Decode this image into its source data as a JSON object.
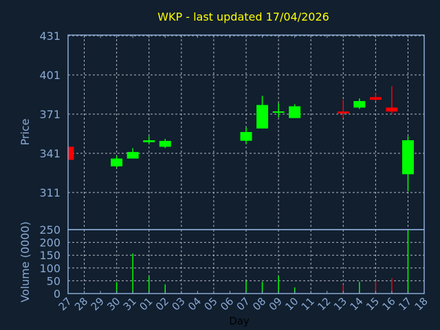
{
  "chart_data": [
    {
      "type": "candlestick",
      "title": "WKP - last updated 17/04/2026",
      "ylabel": "Price",
      "xlabel": "Day",
      "ylim": [
        282.6,
        431.5
      ],
      "yticks": [
        431,
        401,
        371,
        341,
        311
      ],
      "grid": true,
      "categories": [
        "27",
        "28",
        "29",
        "30",
        "31",
        "01",
        "02",
        "03",
        "04",
        "05",
        "06",
        "07",
        "08",
        "09",
        "10",
        "11",
        "12",
        "13",
        "14",
        "15",
        "16",
        "17",
        "18"
      ],
      "candles": [
        {
          "day": "27",
          "open": 346,
          "high": 346,
          "low": 336,
          "close": 336
        },
        {
          "day": "30",
          "open": 331,
          "high": 339,
          "low": 330,
          "close": 337
        },
        {
          "day": "31",
          "open": 337,
          "high": 345,
          "low": 337,
          "close": 342
        },
        {
          "day": "01",
          "open": 349.5,
          "high": 354,
          "low": 348,
          "close": 351
        },
        {
          "day": "02",
          "open": 346,
          "high": 352,
          "low": 345,
          "close": 350.5
        },
        {
          "day": "07",
          "open": 350.6,
          "high": 361,
          "low": 348,
          "close": 357.3
        },
        {
          "day": "08",
          "open": 360,
          "high": 385,
          "low": 360,
          "close": 378
        },
        {
          "day": "09",
          "open": 372.2,
          "high": 379.4,
          "low": 368.5,
          "close": 373.1
        },
        {
          "day": "10",
          "open": 368,
          "high": 378.5,
          "low": 368,
          "close": 377
        },
        {
          "day": "13",
          "open": 373,
          "high": 382,
          "low": 368,
          "close": 371.5
        },
        {
          "day": "14",
          "open": 376,
          "high": 383,
          "low": 375,
          "close": 381
        },
        {
          "day": "15",
          "open": 384,
          "high": 387,
          "low": 381,
          "close": 382
        },
        {
          "day": "16",
          "open": 376,
          "high": 392.5,
          "low": 371,
          "close": 373
        },
        {
          "day": "17",
          "open": 325,
          "high": 354,
          "low": 312,
          "close": 351
        }
      ],
      "colors": {
        "up": "#00ff00",
        "down": "#ff0000",
        "background": "#111f2f",
        "axis": "#8aaad4",
        "title": "#ffff00"
      }
    },
    {
      "type": "bar",
      "ylabel": "Volume (0000)",
      "ylim": [
        0,
        250
      ],
      "yticks": [
        250,
        200,
        150,
        100,
        50,
        0
      ],
      "grid": true,
      "bars": [
        {
          "day": "30",
          "value": 45,
          "dir": "up"
        },
        {
          "day": "31",
          "value": 157,
          "dir": "up"
        },
        {
          "day": "01",
          "value": 67,
          "dir": "up"
        },
        {
          "day": "02",
          "value": 36,
          "dir": "up"
        },
        {
          "day": "07",
          "value": 49,
          "dir": "up"
        },
        {
          "day": "08",
          "value": 46,
          "dir": "up"
        },
        {
          "day": "09",
          "value": 68,
          "dir": "up"
        },
        {
          "day": "10",
          "value": 24,
          "dir": "up"
        },
        {
          "day": "13",
          "value": 34,
          "dir": "down"
        },
        {
          "day": "14",
          "value": 46,
          "dir": "up"
        },
        {
          "day": "15",
          "value": 48,
          "dir": "down"
        },
        {
          "day": "16",
          "value": 60,
          "dir": "down"
        },
        {
          "day": "17",
          "value": 250,
          "dir": "up"
        }
      ]
    }
  ]
}
